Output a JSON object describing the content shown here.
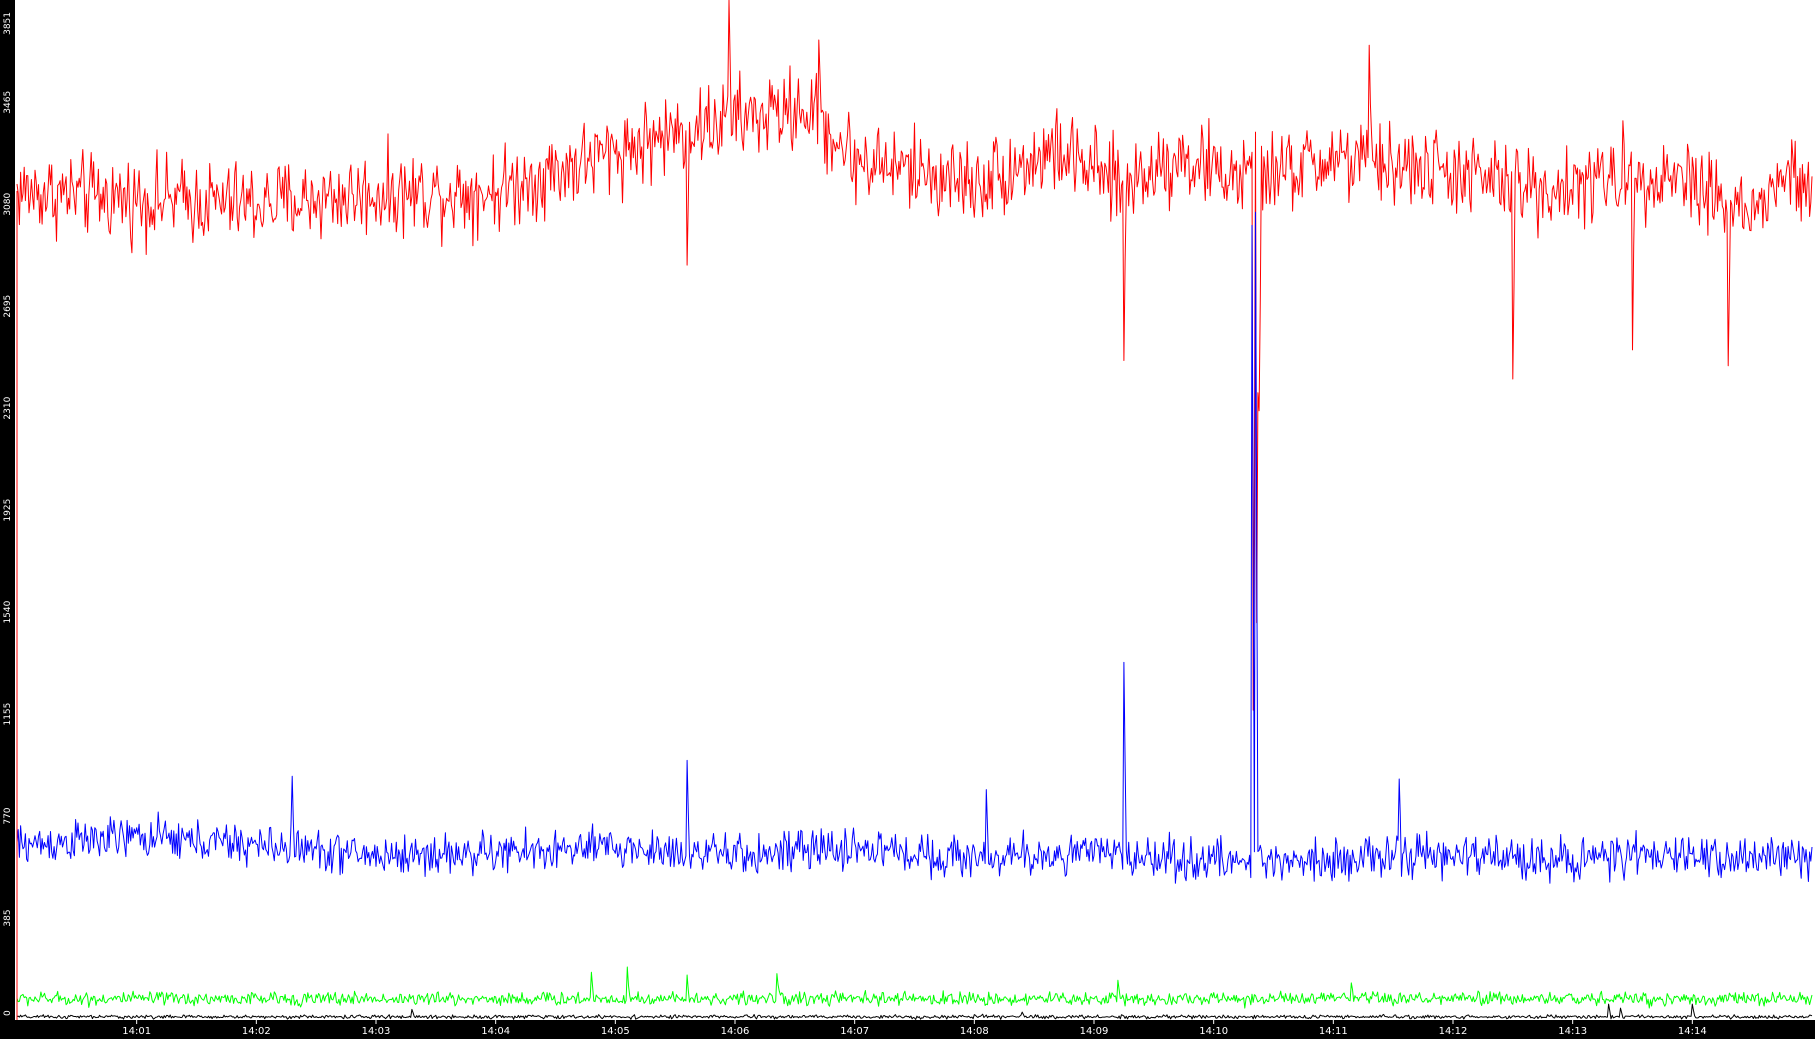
{
  "chart_data": {
    "type": "line",
    "title": "",
    "xlabel": "",
    "ylabel": "",
    "y_ticks": [
      "0",
      "385",
      "770",
      "1155",
      "1540",
      "1925",
      "2310",
      "2695",
      "3080",
      "3465",
      "3851"
    ],
    "ylim": [
      0,
      3851
    ],
    "x_ticks": [
      "14:01",
      "14:02",
      "14:03",
      "14:04",
      "14:05",
      "14:06",
      "14:07",
      "14:08",
      "14:09",
      "14:10",
      "14:11",
      "14:12",
      "14:13",
      "14:14"
    ],
    "xlim_minutes": [
      0,
      15
    ],
    "x_tick_minutes": [
      1,
      2,
      3,
      4,
      5,
      6,
      7,
      8,
      9,
      10,
      11,
      12,
      13,
      14
    ],
    "background": "#ffffff",
    "axis_band_color": "#000000",
    "grid": false,
    "legend": "none",
    "series": [
      {
        "color": "#ff0000",
        "baseline": [
          [
            0,
            3130
          ],
          [
            1,
            3100
          ],
          [
            2,
            3080
          ],
          [
            3,
            3120
          ],
          [
            4,
            3130
          ],
          [
            5,
            3280
          ],
          [
            5.5,
            3350
          ],
          [
            6,
            3400
          ],
          [
            6.6,
            3440
          ],
          [
            7,
            3250
          ],
          [
            8,
            3160
          ],
          [
            8.7,
            3280
          ],
          [
            9.2,
            3150
          ],
          [
            9.7,
            3260
          ],
          [
            10.2,
            3180
          ],
          [
            10.6,
            3200
          ],
          [
            11,
            3250
          ],
          [
            12,
            3200
          ],
          [
            12.5,
            3150
          ],
          [
            13,
            3140
          ],
          [
            13.5,
            3200
          ],
          [
            14,
            3180
          ],
          [
            14.5,
            3030
          ],
          [
            14.8,
            3200
          ],
          [
            15,
            3100
          ]
        ],
        "noise": 110,
        "spikes": [
          [
            5.95,
            3851
          ],
          [
            6.7,
            3700
          ],
          [
            11.3,
            3680
          ],
          [
            9.25,
            2490
          ],
          [
            12.5,
            2420
          ],
          [
            13.5,
            2530
          ],
          [
            14.3,
            2470
          ],
          [
            5.6,
            2850
          ],
          [
            10.33,
            1170
          ],
          [
            10.36,
            1500
          ],
          [
            10.38,
            2300
          ]
        ]
      },
      {
        "color": "#0000ff",
        "baseline": [
          [
            0,
            660
          ],
          [
            1,
            690
          ],
          [
            2,
            660
          ],
          [
            3,
            620
          ],
          [
            4,
            630
          ],
          [
            5,
            650
          ],
          [
            6,
            620
          ],
          [
            7,
            650
          ],
          [
            8,
            610
          ],
          [
            9,
            630
          ],
          [
            10,
            600
          ],
          [
            11,
            610
          ],
          [
            12,
            620
          ],
          [
            13,
            610
          ],
          [
            14,
            620
          ],
          [
            15,
            610
          ]
        ],
        "noise": 55,
        "spikes": [
          [
            5.6,
            980
          ],
          [
            8.1,
            870
          ],
          [
            9.25,
            1350
          ],
          [
            10.32,
            3000
          ],
          [
            10.35,
            3050
          ],
          [
            11.55,
            910
          ],
          [
            2.3,
            920
          ]
        ]
      },
      {
        "color": "#00ff00",
        "baseline": [
          [
            0,
            80
          ],
          [
            15,
            80
          ]
        ],
        "noise": 18,
        "spikes": [
          [
            4.8,
            180
          ],
          [
            5.1,
            200
          ],
          [
            5.6,
            170
          ],
          [
            6.35,
            175
          ],
          [
            9.2,
            150
          ],
          [
            11.15,
            140
          ]
        ]
      },
      {
        "color": "#000000",
        "baseline": [
          [
            0,
            12
          ],
          [
            15,
            12
          ]
        ],
        "noise": 5,
        "spikes": [
          [
            3.3,
            40
          ],
          [
            8.4,
            30
          ],
          [
            13.3,
            60
          ],
          [
            13.4,
            45
          ],
          [
            14.0,
            60
          ]
        ]
      }
    ]
  }
}
